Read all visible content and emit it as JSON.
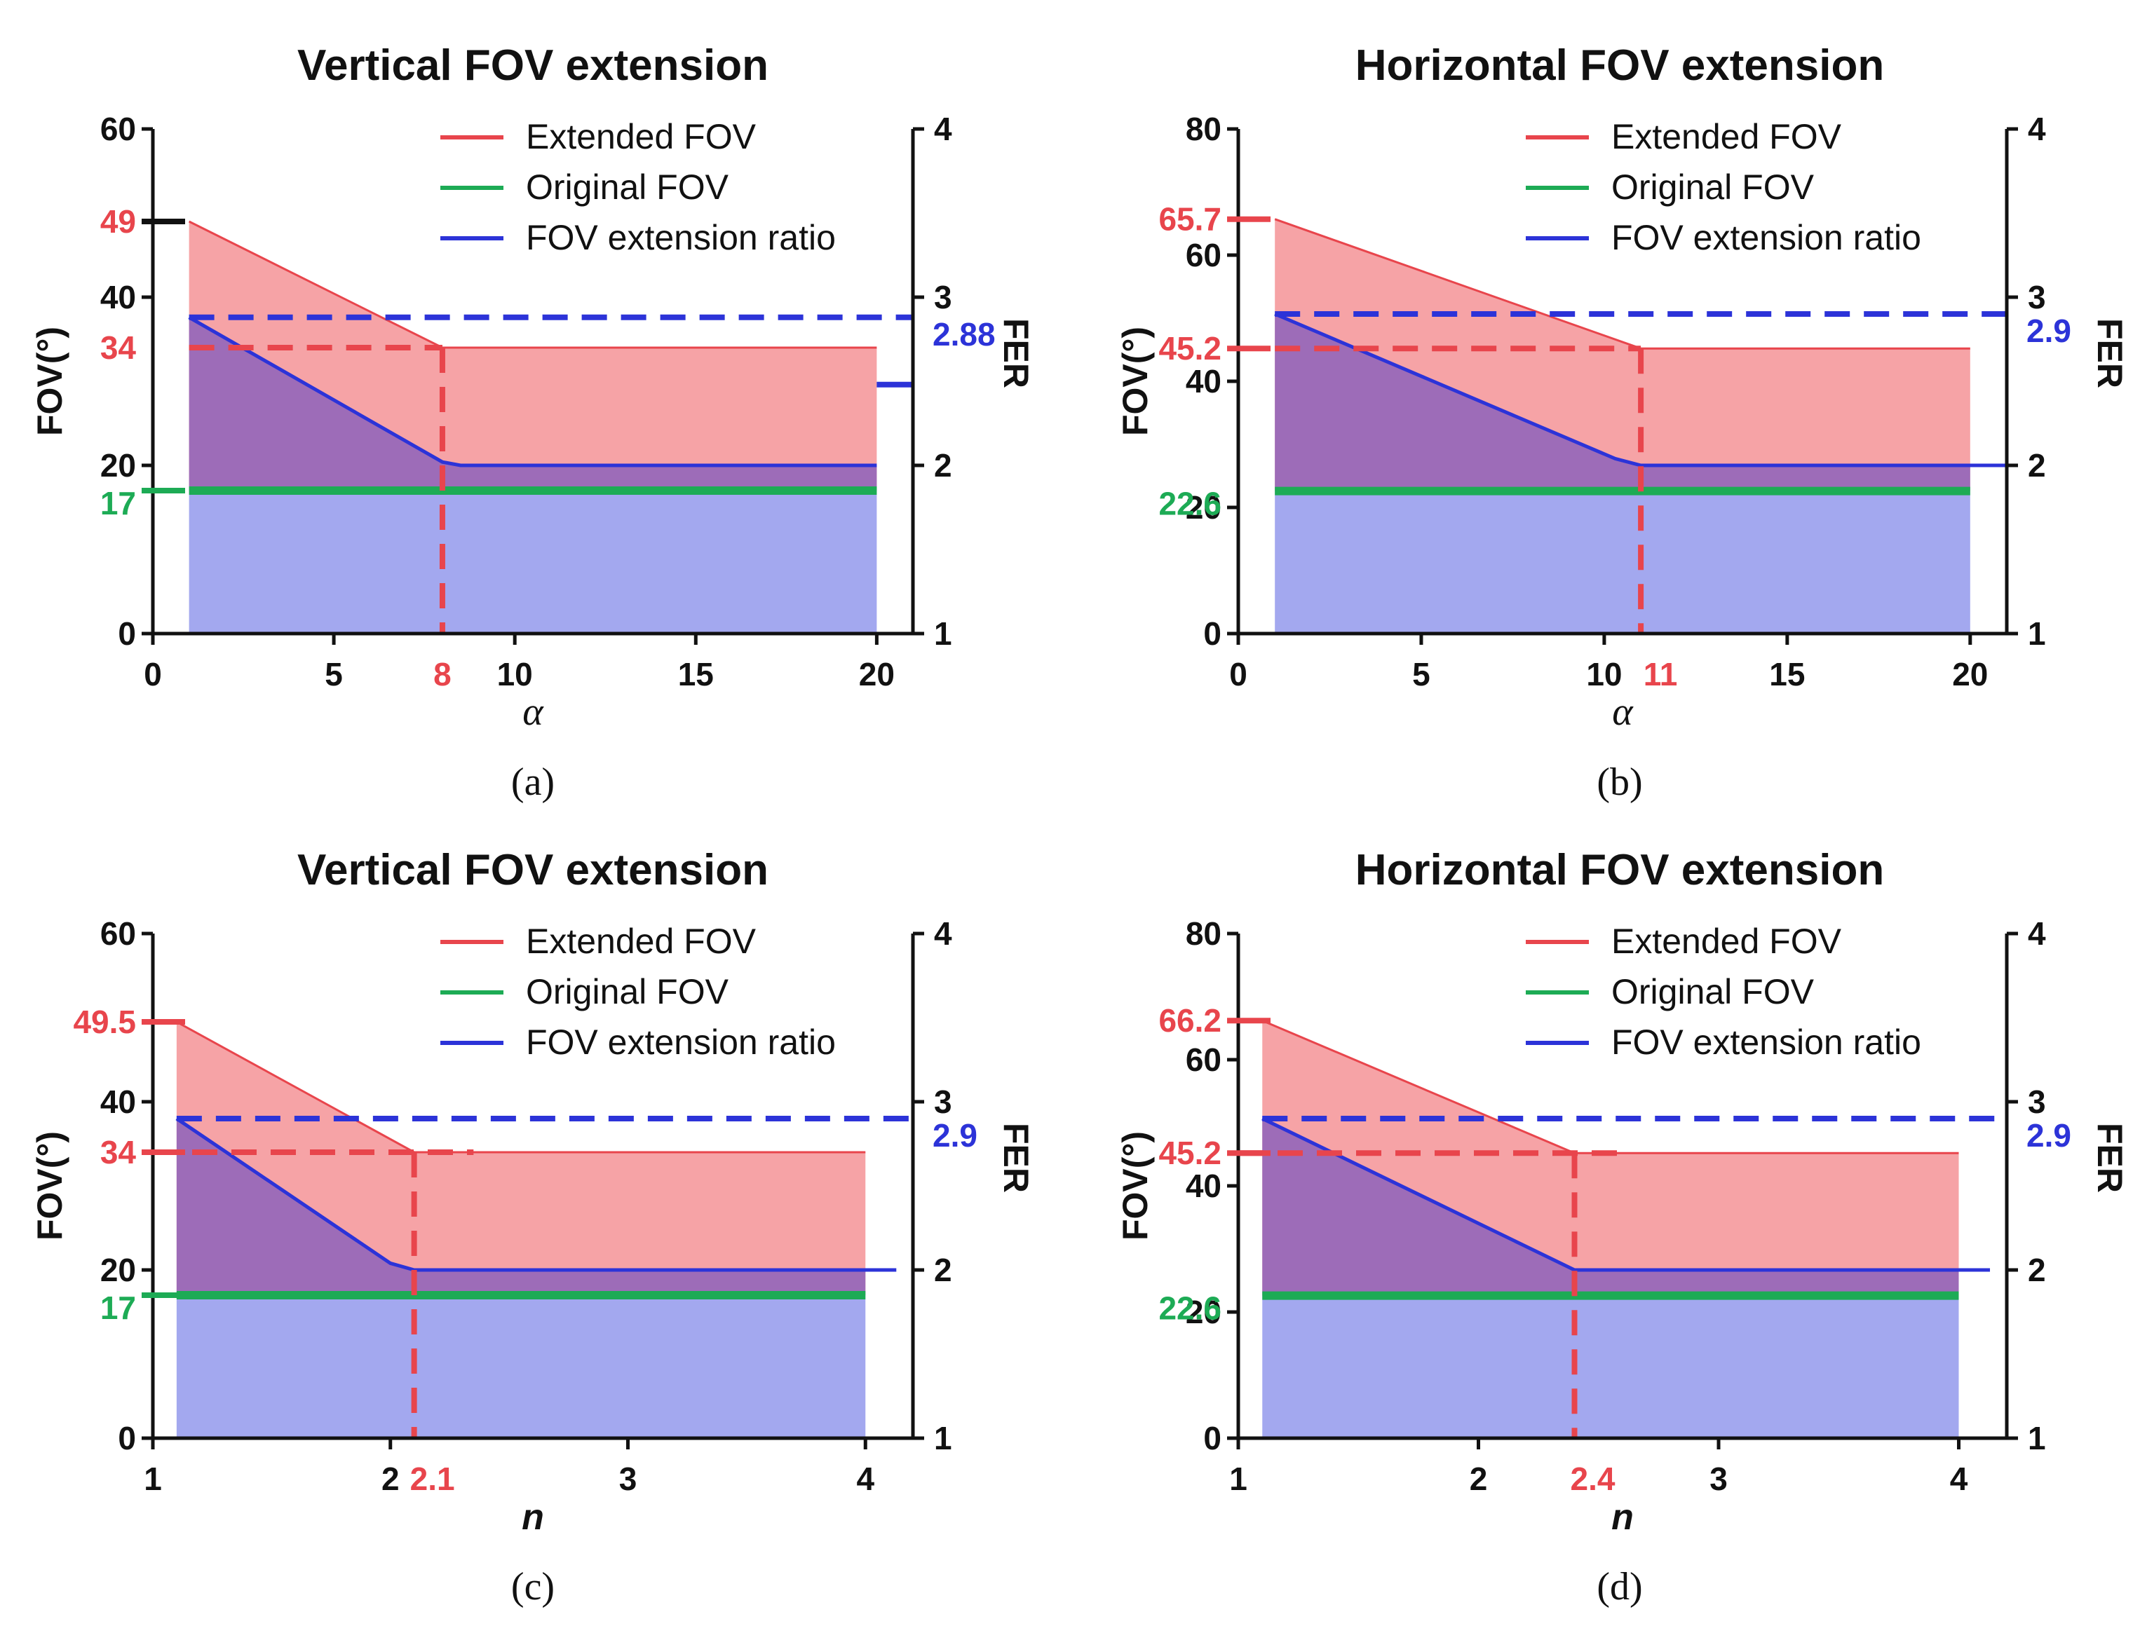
{
  "colors": {
    "extended": "#e8454c",
    "extended_fill": "#f6a3a6",
    "original": "#1dab55",
    "ratio": "#2c33d8",
    "ratio_fill": "#a3a8ef",
    "overlap_fill": "#9d6cb8",
    "axis": "#111111"
  },
  "legend": [
    "Extended FOV",
    "Original FOV",
    "FOV extension ratio"
  ],
  "chart_data": [
    {
      "panel": "(a)",
      "title": "Vertical FOV extension",
      "type": "line",
      "xlabel": "α",
      "ylabel": "FOV(°)",
      "y2label": "FER",
      "xlim": [
        0,
        21
      ],
      "ylim": [
        0,
        60
      ],
      "y2lim": [
        1,
        4
      ],
      "xticks": [
        0,
        5,
        10,
        15,
        20
      ],
      "xtick_labels": [
        "0",
        "5",
        "10",
        "15",
        "20"
      ],
      "yticks": [
        0,
        20,
        40,
        60
      ],
      "ytick_labels": [
        "0",
        "20",
        "40",
        "60"
      ],
      "y2ticks": [
        1,
        2,
        3,
        4
      ],
      "y2tick_labels": [
        "1",
        "2",
        "3",
        "4"
      ],
      "highlight_x": {
        "value": 8,
        "label": "8"
      },
      "highlight_y": [
        {
          "value": 49,
          "label": "49",
          "color": "extended",
          "tick": "black"
        },
        {
          "value": 34,
          "label": "34",
          "color": "extended",
          "tick": "none"
        },
        {
          "value": 17,
          "label": "17",
          "color": "original",
          "tick": "green"
        }
      ],
      "highlight_y2": {
        "value": 2.88,
        "label": "2.88"
      },
      "series": [
        {
          "name": "Extended FOV",
          "x": [
            1,
            8,
            20
          ],
          "y": [
            49,
            34,
            34
          ]
        },
        {
          "name": "Original FOV",
          "x": [
            1,
            20
          ],
          "y": [
            17,
            17
          ]
        },
        {
          "name": "FOV extension ratio",
          "x": [
            1,
            8,
            8.5,
            20
          ],
          "y": [
            2.88,
            2.02,
            2.0,
            2.0
          ]
        }
      ],
      "fer_ref_line": {
        "y": 2.88,
        "x_from": 1,
        "x_to": 21
      },
      "fov_ref_line": {
        "y": 34,
        "x_from": 1,
        "x_to": 8
      },
      "fer_ext_segment": {
        "y": 2.48,
        "x_from": 20.0,
        "x_to": 21
      },
      "ratio_ext_to": 20
    },
    {
      "panel": "(b)",
      "title": "Horizontal FOV extension",
      "type": "line",
      "xlabel": "α",
      "ylabel": "FOV(°)",
      "y2label": "FER",
      "xlim": [
        0,
        21
      ],
      "ylim": [
        0,
        80
      ],
      "y2lim": [
        1,
        4
      ],
      "xticks": [
        0,
        5,
        10,
        15,
        20
      ],
      "xtick_labels": [
        "0",
        "5",
        "10",
        "15",
        "20"
      ],
      "yticks": [
        0,
        20,
        40,
        60,
        80
      ],
      "ytick_labels": [
        "0",
        "20",
        "40",
        "60",
        "80"
      ],
      "y2ticks": [
        1,
        2,
        3,
        4
      ],
      "y2tick_labels": [
        "1",
        "2",
        "3",
        "4"
      ],
      "highlight_x": {
        "value": 11,
        "label": "11"
      },
      "highlight_y": [
        {
          "value": 65.7,
          "label": "65.7",
          "color": "extended",
          "tick": "red"
        },
        {
          "value": 45.2,
          "label": "45.2",
          "color": "extended",
          "tick": "red"
        },
        {
          "value": 22.6,
          "label": "22.6",
          "color": "original",
          "tick": "none"
        }
      ],
      "highlight_y2": {
        "value": 2.9,
        "label": "2.9"
      },
      "series": [
        {
          "name": "Extended FOV",
          "x": [
            1,
            11,
            20
          ],
          "y": [
            65.7,
            45.2,
            45.2
          ]
        },
        {
          "name": "Original FOV",
          "x": [
            1,
            20
          ],
          "y": [
            22.6,
            22.6
          ]
        },
        {
          "name": "FOV extension ratio",
          "x": [
            1,
            10.3,
            11,
            20
          ],
          "y": [
            2.9,
            2.04,
            2.0,
            2.0
          ]
        }
      ],
      "fer_ref_line": {
        "y": 2.9,
        "x_from": 1,
        "x_to": 21
      },
      "fov_ref_line": {
        "y": 45.2,
        "x_from": 1,
        "x_to": 11
      },
      "ratio_ext_to": 21
    },
    {
      "panel": "(c)",
      "title": "Vertical FOV extension",
      "type": "line",
      "xlabel": "n",
      "ylabel": "FOV(°)",
      "y2label": "FER",
      "xlim": [
        1,
        4.2
      ],
      "ylim": [
        0,
        60
      ],
      "y2lim": [
        1,
        4
      ],
      "xticks": [
        1,
        2,
        3,
        4
      ],
      "xtick_labels": [
        "1",
        "2",
        "3",
        "4"
      ],
      "yticks": [
        0,
        20,
        40,
        60
      ],
      "ytick_labels": [
        "0",
        "20",
        "40",
        "60"
      ],
      "y2ticks": [
        1,
        2,
        3,
        4
      ],
      "y2tick_labels": [
        "1",
        "2",
        "3",
        "4"
      ],
      "highlight_x": {
        "value": 2.1,
        "label": "2.1"
      },
      "highlight_y": [
        {
          "value": 49.5,
          "label": "49.5",
          "color": "extended",
          "tick": "red"
        },
        {
          "value": 34,
          "label": "34",
          "color": "extended",
          "tick": "red"
        },
        {
          "value": 17,
          "label": "17",
          "color": "original",
          "tick": "green"
        }
      ],
      "highlight_y2": {
        "value": 2.9,
        "label": "2.9"
      },
      "series": [
        {
          "name": "Extended FOV",
          "x": [
            1.1,
            2.1,
            4
          ],
          "y": [
            49.5,
            34,
            34
          ]
        },
        {
          "name": "Original FOV",
          "x": [
            1.1,
            4
          ],
          "y": [
            17,
            17
          ]
        },
        {
          "name": "FOV extension ratio",
          "x": [
            1.1,
            2.0,
            2.1,
            4
          ],
          "y": [
            2.9,
            2.04,
            2.0,
            2.0
          ]
        }
      ],
      "fer_ref_line": {
        "y": 2.9,
        "x_from": 1.1,
        "x_to": 4.2
      },
      "fov_ref_line": {
        "y": 34,
        "x_from": 1,
        "x_to": 2.35
      },
      "ratio_ext_to": 4.13
    },
    {
      "panel": "(d)",
      "title": "Horizontal FOV extension",
      "type": "line",
      "xlabel": "n",
      "ylabel": "FOV(°)",
      "y2label": "FER",
      "xlim": [
        1,
        4.2
      ],
      "ylim": [
        0,
        80
      ],
      "y2lim": [
        1,
        4
      ],
      "xticks": [
        1,
        2,
        3,
        4
      ],
      "xtick_labels": [
        "1",
        "2",
        "3",
        "4"
      ],
      "yticks": [
        0,
        20,
        40,
        60,
        80
      ],
      "ytick_labels": [
        "0",
        "20",
        "40",
        "60",
        "80"
      ],
      "y2ticks": [
        1,
        2,
        3,
        4
      ],
      "y2tick_labels": [
        "1",
        "2",
        "3",
        "4"
      ],
      "highlight_x": {
        "value": 2.4,
        "label": "2.4"
      },
      "highlight_y": [
        {
          "value": 66.2,
          "label": "66.2",
          "color": "extended",
          "tick": "red"
        },
        {
          "value": 45.2,
          "label": "45.2",
          "color": "extended",
          "tick": "red"
        },
        {
          "value": 22.6,
          "label": "22.6",
          "color": "original",
          "tick": "none"
        }
      ],
      "highlight_y2": {
        "value": 2.9,
        "label": "2.9"
      },
      "series": [
        {
          "name": "Extended FOV",
          "x": [
            1.1,
            2.4,
            4
          ],
          "y": [
            66.2,
            45.2,
            45.2
          ]
        },
        {
          "name": "Original FOV",
          "x": [
            1.1,
            4
          ],
          "y": [
            22.6,
            22.6
          ]
        },
        {
          "name": "FOV extension ratio",
          "x": [
            1.1,
            2.4,
            4
          ],
          "y": [
            2.9,
            2.0,
            2.0
          ]
        }
      ],
      "fer_ref_line": {
        "y": 2.9,
        "x_from": 1.1,
        "x_to": 4.2
      },
      "fov_ref_line": {
        "y": 45.2,
        "x_from": 1,
        "x_to": 2.6
      },
      "ratio_ext_to": 4.13
    }
  ]
}
